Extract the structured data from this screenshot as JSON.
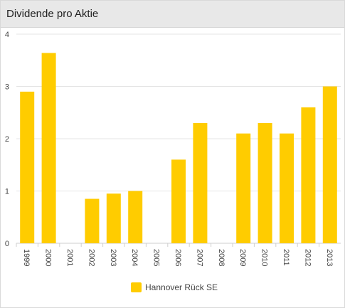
{
  "header": {
    "title": "Dividende pro Aktie"
  },
  "chart_data": {
    "type": "bar",
    "title": "",
    "xlabel": "",
    "ylabel": "",
    "ylim": [
      0,
      4
    ],
    "yticks": [
      0,
      1,
      2,
      3,
      4
    ],
    "grid": true,
    "legend_position": "bottom-center",
    "categories": [
      "1999",
      "2000",
      "2001",
      "2002",
      "2003",
      "2004",
      "2005",
      "2006",
      "2007",
      "2008",
      "2009",
      "2010",
      "2011",
      "2012",
      "2013"
    ],
    "series": [
      {
        "name": "Hannover Rück SE",
        "color": "#FFCC00",
        "values": [
          2.9,
          3.64,
          0,
          0.85,
          0.95,
          1.0,
          0,
          1.6,
          2.3,
          0,
          2.1,
          2.3,
          2.1,
          2.6,
          3.0
        ]
      }
    ]
  }
}
